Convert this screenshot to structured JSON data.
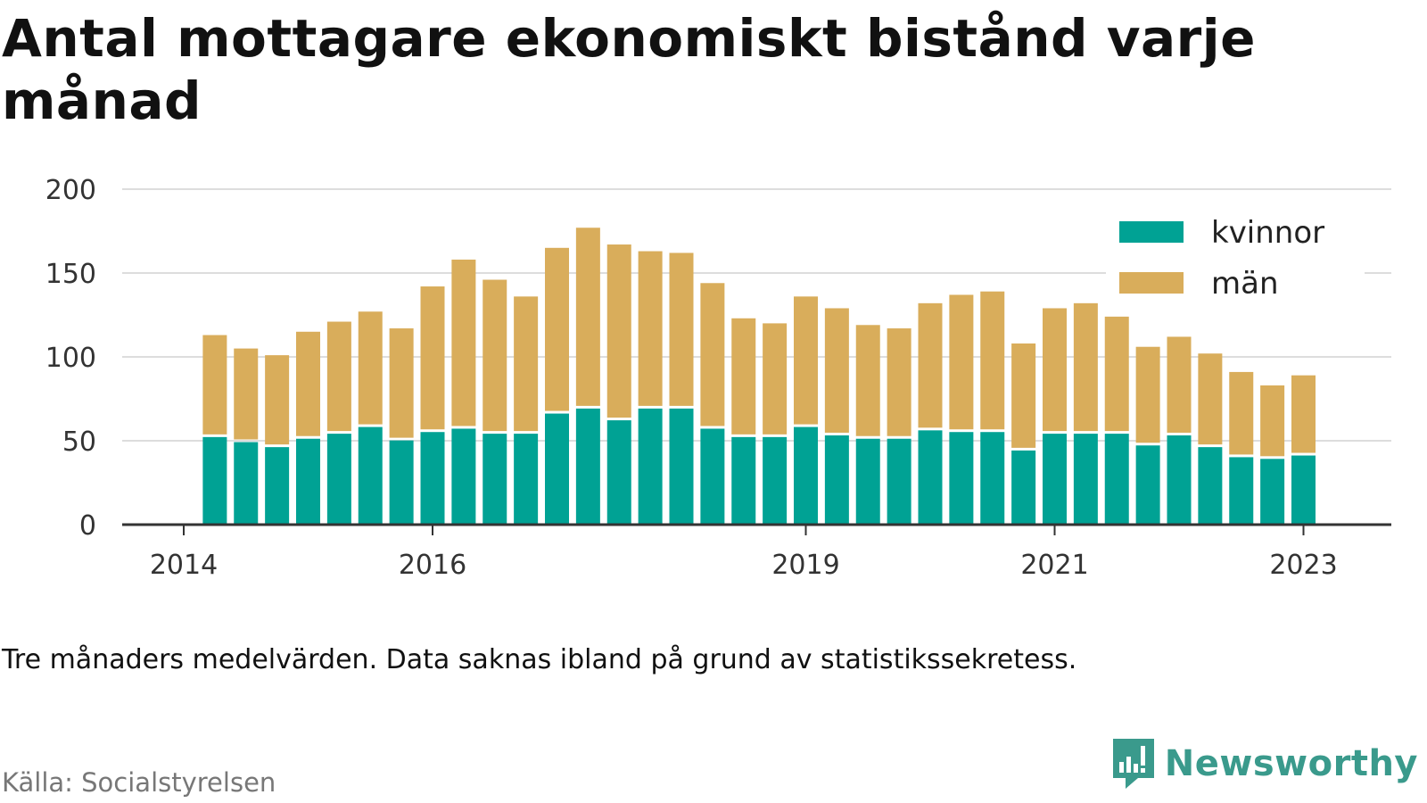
{
  "title": "Antal mottagare ekonomiskt bistånd varje månad",
  "note": "Tre månaders medelvärden. Data saknas ibland på grund av statistikssekretess.",
  "source": "Källa: Socialstyrelsen",
  "brand": {
    "name": "Newsworthy",
    "logo_icon": "newsworthy-logo-icon",
    "color": "#3a9a8c"
  },
  "chart_data": {
    "type": "bar",
    "stacked": true,
    "ylim": [
      0,
      200
    ],
    "yticks": [
      0,
      50,
      100,
      150,
      200
    ],
    "grid": true,
    "legend_position": "top-right",
    "xlim": [
      2014.0,
      2024.0
    ],
    "xticks": [
      {
        "label": "2014",
        "value": 2014.0
      },
      {
        "label": "2016",
        "value": 2016.0
      },
      {
        "label": "2019",
        "value": 2019.0
      },
      {
        "label": "2021",
        "value": 2021.0
      },
      {
        "label": "2023",
        "value": 2023.0
      }
    ],
    "x": [
      2014.25,
      2014.5,
      2014.75,
      2015.0,
      2015.25,
      2015.5,
      2015.75,
      2016.0,
      2016.25,
      2016.5,
      2016.75,
      2017.0,
      2017.25,
      2017.5,
      2017.75,
      2018.0,
      2018.25,
      2018.5,
      2018.75,
      2019.0,
      2019.25,
      2019.5,
      2019.75,
      2020.0,
      2020.25,
      2020.5,
      2020.75,
      2021.0,
      2021.25,
      2021.5,
      2021.75,
      2022.0,
      2022.25,
      2022.5,
      2022.75,
      2023.0
    ],
    "series": [
      {
        "name": "kvinnor",
        "color": "#00a294",
        "values": [
          53,
          50,
          47,
          52,
          55,
          59,
          51,
          56,
          58,
          55,
          55,
          67,
          70,
          63,
          70,
          70,
          58,
          53,
          53,
          59,
          54,
          52,
          52,
          57,
          56,
          56,
          45,
          55,
          55,
          55,
          48,
          54,
          47,
          41,
          40,
          42
        ]
      },
      {
        "name": "män",
        "color": "#d9ad5b",
        "values": [
          60,
          55,
          54,
          63,
          66,
          68,
          66,
          86,
          100,
          91,
          81,
          98,
          107,
          104,
          93,
          92,
          86,
          70,
          67,
          77,
          75,
          67,
          65,
          75,
          81,
          83,
          63,
          74,
          77,
          69,
          58,
          58,
          55,
          50,
          43,
          47
        ]
      }
    ]
  }
}
